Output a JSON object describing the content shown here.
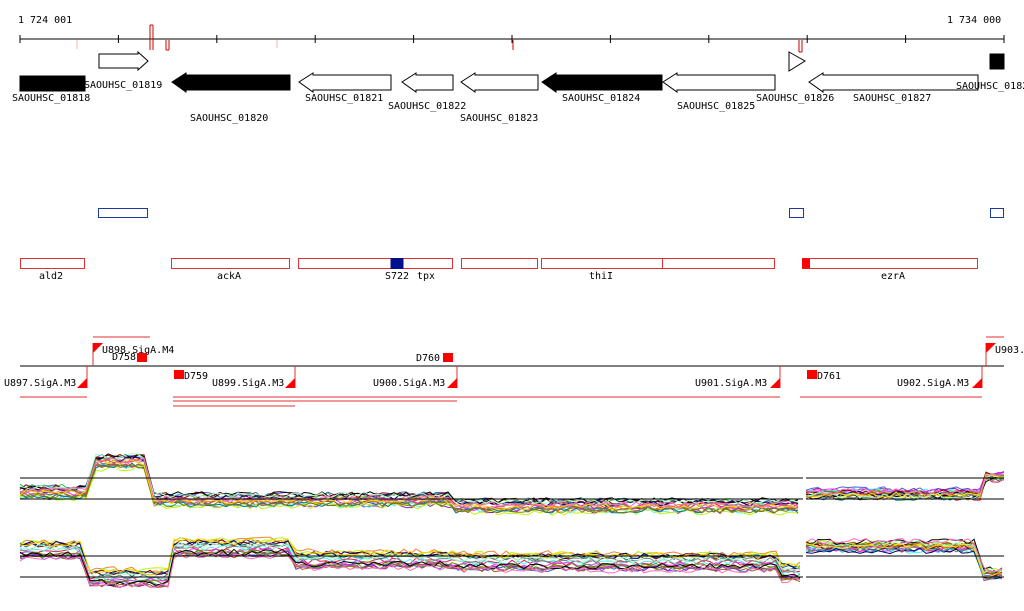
{
  "coordinates": {
    "start_label": "1 724 001",
    "end_label": "1 734 000",
    "colors": {
      "axis": "#000000",
      "tick_red": "#cc0000",
      "tick_pink": "#ffb0b0"
    }
  },
  "genes": [
    {
      "label": "SAOUHSC_01818",
      "strand": "+",
      "filled": true
    },
    {
      "label": "SAOUHSC_01819",
      "strand": "+",
      "filled": false
    },
    {
      "label": "SAOUHSC_01820",
      "strand": "-",
      "filled": true
    },
    {
      "label": "SAOUHSC_01821",
      "strand": "-",
      "filled": false
    },
    {
      "label": "SAOUHSC_01822",
      "strand": "-",
      "filled": false
    },
    {
      "label": "SAOUHSC_01823",
      "strand": "-",
      "filled": false
    },
    {
      "label": "SAOUHSC_01824",
      "strand": "-",
      "filled": true
    },
    {
      "label": "SAOUHSC_01825",
      "strand": "-",
      "filled": false
    },
    {
      "label": "SAOUHSC_01826",
      "strand": "+",
      "filled": false
    },
    {
      "label": "SAOUHSC_01827",
      "strand": "-",
      "filled": false
    },
    {
      "label": "SAOUHSC_0182",
      "strand": "+",
      "filled": true
    }
  ],
  "blue_features": {
    "color": "#1a3aa0"
  },
  "operon_labels": [
    "ald2",
    "ackA",
    "S722",
    "tpx",
    "thiI",
    "ezrA"
  ],
  "operon_colors": {
    "box": "#e03030",
    "fill_red": "#ff0000",
    "fill_blue": "#00108c"
  },
  "promoters": [
    "U897.SigA.M3",
    "U898.SigA.M4",
    "U899.SigA.M3",
    "U900.SigA.M3",
    "U901.SigA.M3",
    "U902.SigA.M3",
    "U903."
  ],
  "terminators": [
    "D758",
    "D759",
    "D760",
    "D761"
  ],
  "expression": {
    "track_colors": [
      "#e6194b",
      "#3cb44b",
      "#4363d8",
      "#f58231",
      "#911eb4",
      "#46f0f0",
      "#f032e6",
      "#bcf60c",
      "#008080",
      "#9a6324",
      "#800000",
      "#808000",
      "#000075",
      "#000000",
      "#808080",
      "#aaffc3",
      "#ffd700",
      "#ff69b4"
    ]
  }
}
